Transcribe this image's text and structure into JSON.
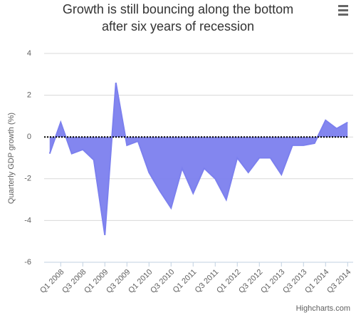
{
  "chart_data": {
    "type": "area",
    "title": [
      "Growth is still bouncing along the bottom",
      "after six years of recession"
    ],
    "y_axis_label": "Quarterly GDP growth (%)",
    "credits": "Highcharts.com",
    "categories": [
      null,
      "Q1 2008",
      null,
      "Q3 2008",
      null,
      "Q1 2009",
      null,
      "Q3 2009",
      null,
      "Q1 2010",
      null,
      "Q3 2010",
      null,
      "Q1 2011",
      null,
      "Q3 2011",
      null,
      "Q1 2012",
      null,
      "Q3 2012",
      null,
      "Q1 2013",
      null,
      "Q3 2013",
      null,
      "Q1 2014",
      null,
      "Q3 2014"
    ],
    "values": [
      -0.8,
      0.7,
      -0.8,
      -0.6,
      -1.1,
      -4.7,
      2.6,
      -0.4,
      -0.2,
      -1.7,
      -2.6,
      -3.4,
      -1.5,
      -2.7,
      -1.5,
      -2.0,
      -3.0,
      -1.0,
      -1.7,
      -1.0,
      -1.0,
      -1.8,
      -0.4,
      -0.4,
      -0.3,
      0.8,
      0.4,
      0.7
    ],
    "color": "#7c80ee",
    "ylim": [
      -6,
      4
    ],
    "yticks": [
      -6,
      -4,
      -2,
      0,
      2,
      4
    ],
    "grid": true,
    "plot_line": 0
  }
}
